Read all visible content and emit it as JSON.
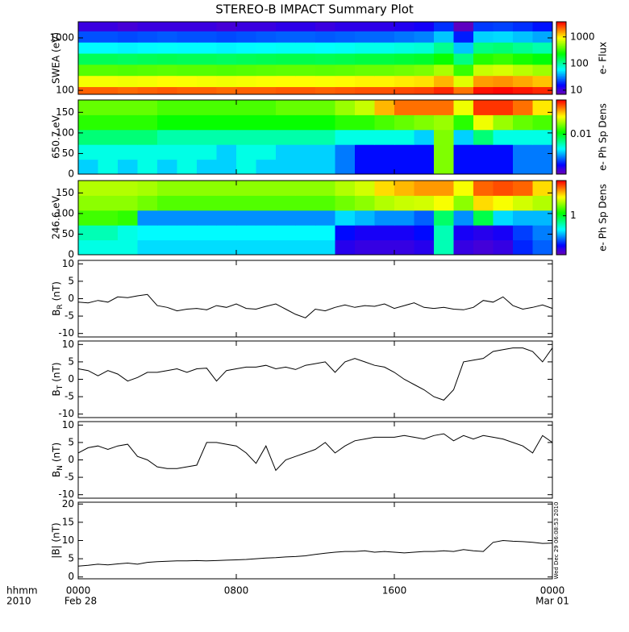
{
  "title": "STEREO-B IMPACT Summary Plot",
  "x_axis": {
    "xlim": [
      0,
      24
    ],
    "xticks": [
      {
        "value": 0,
        "label": "0000"
      },
      {
        "value": 8,
        "label": "0800"
      },
      {
        "value": 16,
        "label": "1600"
      },
      {
        "value": 24,
        "label": "0000"
      }
    ],
    "date_labels": [
      "Feb 28",
      "Mar 01"
    ],
    "unit_labels": [
      "hhmm",
      "2010"
    ]
  },
  "stamp": "Wed Dec 29 06:08:53 2010",
  "chart_data": [
    {
      "type": "heatmap",
      "ylabel": "SWEA (eV)",
      "ylog": true,
      "ylim": [
        84,
        2030
      ],
      "yticks": [
        100,
        1000
      ],
      "colorbar_label": "e- Flux",
      "clog": true,
      "clim": [
        7,
        3700
      ],
      "cticks": [
        10,
        100,
        1000
      ],
      "x": [
        0.5,
        1.5,
        2.5,
        3.5,
        4.5,
        5.5,
        6.5,
        7.5,
        8.5,
        9.5,
        10.5,
        11.5,
        12.5,
        13.5,
        14.5,
        15.5,
        16.5,
        17.5,
        18.5,
        19.5,
        20.5,
        21.5,
        22.5,
        23.5
      ],
      "y": [
        92,
        150,
        245,
        400,
        650,
        1060,
        1730
      ],
      "values": [
        [
          2200,
          2200,
          2100,
          2200,
          2300,
          2200,
          2200,
          2100,
          2200,
          2200,
          2300,
          2300,
          2200,
          2300,
          2400,
          2400,
          2500,
          2600,
          3000,
          2000,
          3400,
          3600,
          3300,
          3000
        ],
        [
          900,
          900,
          880,
          900,
          950,
          920,
          900,
          880,
          900,
          920,
          950,
          950,
          920,
          960,
          1000,
          1000,
          1050,
          1100,
          1400,
          800,
          1600,
          1700,
          1500,
          1300
        ],
        [
          380,
          380,
          370,
          380,
          390,
          380,
          380,
          370,
          380,
          390,
          400,
          400,
          390,
          400,
          420,
          420,
          440,
          470,
          600,
          320,
          700,
          760,
          650,
          560
        ],
        [
          150,
          150,
          145,
          150,
          155,
          150,
          150,
          145,
          150,
          155,
          160,
          160,
          155,
          160,
          170,
          170,
          180,
          190,
          250,
          120,
          290,
          320,
          270,
          230
        ],
        [
          60,
          60,
          58,
          60,
          62,
          60,
          60,
          58,
          60,
          62,
          64,
          64,
          62,
          64,
          68,
          68,
          72,
          76,
          110,
          45,
          120,
          130,
          110,
          95
        ],
        [
          24,
          24,
          23,
          24,
          25,
          24,
          24,
          23,
          24,
          25,
          26,
          26,
          25,
          26,
          27,
          27,
          29,
          31,
          45,
          18,
          48,
          50,
          44,
          38
        ],
        [
          11,
          11,
          10,
          11,
          11,
          11,
          11,
          10,
          11,
          11,
          12,
          12,
          11,
          12,
          12,
          12,
          13,
          14,
          20,
          8,
          21,
          22,
          20,
          17
        ]
      ]
    },
    {
      "type": "heatmap",
      "ylabel": "650.7 eV",
      "ylim": [
        0,
        180
      ],
      "yticks": [
        0,
        50,
        100,
        150
      ],
      "colorbar_label": "e- Ph Sp Dens",
      "clog": true,
      "clim": [
        0.002,
        0.04
      ],
      "cticks": [
        0.01
      ],
      "x": [
        0.5,
        1.5,
        2.5,
        3.5,
        4.5,
        5.5,
        6.5,
        7.5,
        8.5,
        9.5,
        10.5,
        11.5,
        12.5,
        13.5,
        14.5,
        15.5,
        16.5,
        17.5,
        18.5,
        19.5,
        20.5,
        21.5,
        22.5,
        23.5
      ],
      "y": [
        18,
        54,
        90,
        126,
        162
      ],
      "values": [
        [
          0.005,
          0.006,
          0.005,
          0.006,
          0.005,
          0.006,
          0.005,
          0.005,
          0.006,
          0.005,
          0.005,
          0.005,
          0.005,
          0.004,
          0.003,
          0.003,
          0.003,
          0.003,
          0.015,
          0.003,
          0.003,
          0.003,
          0.004,
          0.004
        ],
        [
          0.006,
          0.006,
          0.006,
          0.006,
          0.006,
          0.006,
          0.006,
          0.005,
          0.006,
          0.006,
          0.005,
          0.005,
          0.005,
          0.004,
          0.003,
          0.003,
          0.003,
          0.003,
          0.015,
          0.003,
          0.003,
          0.003,
          0.004,
          0.004
        ],
        [
          0.008,
          0.008,
          0.008,
          0.008,
          0.007,
          0.007,
          0.007,
          0.007,
          0.007,
          0.007,
          0.007,
          0.007,
          0.007,
          0.006,
          0.006,
          0.006,
          0.006,
          0.005,
          0.015,
          0.005,
          0.008,
          0.006,
          0.006,
          0.006
        ],
        [
          0.012,
          0.012,
          0.012,
          0.012,
          0.011,
          0.011,
          0.011,
          0.011,
          0.011,
          0.011,
          0.011,
          0.011,
          0.011,
          0.012,
          0.012,
          0.013,
          0.014,
          0.015,
          0.016,
          0.012,
          0.02,
          0.016,
          0.014,
          0.013
        ],
        [
          0.014,
          0.014,
          0.014,
          0.014,
          0.013,
          0.013,
          0.013,
          0.013,
          0.013,
          0.013,
          0.014,
          0.014,
          0.014,
          0.016,
          0.018,
          0.025,
          0.03,
          0.03,
          0.03,
          0.02,
          0.035,
          0.035,
          0.03,
          0.022
        ]
      ]
    },
    {
      "type": "heatmap",
      "ylabel": "246.6 eV",
      "ylim": [
        0,
        180
      ],
      "yticks": [
        0,
        50,
        100,
        150
      ],
      "colorbar_label": "e- Ph Sp Dens",
      "clog": true,
      "clim": [
        0.1,
        8
      ],
      "cticks": [
        1
      ],
      "x": [
        0.5,
        1.5,
        2.5,
        3.5,
        4.5,
        5.5,
        6.5,
        7.5,
        8.5,
        9.5,
        10.5,
        11.5,
        12.5,
        13.5,
        14.5,
        15.5,
        16.5,
        17.5,
        18.5,
        19.5,
        20.5,
        21.5,
        22.5,
        23.5
      ],
      "y": [
        18,
        54,
        90,
        126,
        162
      ],
      "values": [
        [
          0.5,
          0.5,
          0.5,
          0.4,
          0.4,
          0.4,
          0.4,
          0.4,
          0.4,
          0.4,
          0.4,
          0.4,
          0.4,
          0.15,
          0.14,
          0.14,
          0.14,
          0.15,
          0.6,
          0.14,
          0.13,
          0.14,
          0.2,
          0.25
        ],
        [
          0.6,
          0.6,
          0.5,
          0.45,
          0.45,
          0.45,
          0.45,
          0.45,
          0.45,
          0.45,
          0.45,
          0.45,
          0.45,
          0.18,
          0.16,
          0.16,
          0.16,
          0.18,
          0.6,
          0.16,
          0.15,
          0.16,
          0.22,
          0.28
        ],
        [
          1.5,
          1.5,
          1.4,
          0.3,
          0.3,
          0.3,
          0.3,
          0.3,
          0.3,
          0.3,
          0.3,
          0.3,
          0.3,
          0.4,
          0.35,
          0.3,
          0.3,
          0.25,
          0.8,
          0.3,
          0.9,
          0.4,
          0.35,
          0.35
        ],
        [
          2,
          2,
          2,
          1.8,
          1.6,
          1.6,
          1.6,
          1.6,
          1.6,
          1.6,
          1.6,
          1.6,
          1.6,
          1.8,
          2,
          2.3,
          2.5,
          2.6,
          3,
          2,
          3.5,
          3,
          2.6,
          2.3
        ],
        [
          2.3,
          2.3,
          2.3,
          2.2,
          2,
          2,
          2,
          2,
          2,
          2,
          2,
          2,
          2,
          2.3,
          2.6,
          3.5,
          4,
          4.5,
          4.5,
          3,
          5.5,
          6,
          5.5,
          3.5
        ]
      ]
    },
    {
      "type": "line",
      "ylabel": "B",
      "ylabel_sub": "R",
      "ylabel_unit": "(nT)",
      "color": "#000000",
      "ylim": [
        -11,
        11
      ],
      "yticks": [
        -10,
        -5,
        0,
        5,
        10
      ],
      "x": [
        0,
        0.5,
        1,
        1.5,
        2,
        2.5,
        3,
        3.5,
        4,
        4.5,
        5,
        5.5,
        6,
        6.5,
        7,
        7.5,
        8,
        8.5,
        9,
        9.5,
        10,
        10.5,
        11,
        11.5,
        12,
        12.5,
        13,
        13.5,
        14,
        14.5,
        15,
        15.5,
        16,
        16.5,
        17,
        17.5,
        18,
        18.5,
        19,
        19.5,
        20,
        20.5,
        21,
        21.5,
        22,
        22.5,
        23,
        23.5,
        24
      ],
      "values": [
        -1,
        -1.2,
        -0.5,
        -1,
        0.5,
        0.3,
        0.8,
        1.2,
        -2,
        -2.5,
        -3.5,
        -3,
        -2.8,
        -3.2,
        -2,
        -2.5,
        -1.5,
        -2.8,
        -3,
        -2.2,
        -1.5,
        -3,
        -4.5,
        -5.5,
        -3,
        -3.5,
        -2.5,
        -1.8,
        -2.5,
        -2,
        -2.2,
        -1.5,
        -2.8,
        -2,
        -1.2,
        -2.5,
        -2.8,
        -2.5,
        -3,
        -3.2,
        -2.5,
        -0.5,
        -1,
        0.5,
        -2,
        -3,
        -2.5,
        -1.8,
        -2.8
      ]
    },
    {
      "type": "line",
      "ylabel": "B",
      "ylabel_sub": "T",
      "ylabel_unit": "(nT)",
      "color": "#000000",
      "ylim": [
        -11,
        11
      ],
      "yticks": [
        -10,
        -5,
        0,
        5,
        10
      ],
      "x": [
        0,
        0.5,
        1,
        1.5,
        2,
        2.5,
        3,
        3.5,
        4,
        4.5,
        5,
        5.5,
        6,
        6.5,
        7,
        7.5,
        8,
        8.5,
        9,
        9.5,
        10,
        10.5,
        11,
        11.5,
        12,
        12.5,
        13,
        13.5,
        14,
        14.5,
        15,
        15.5,
        16,
        16.5,
        17,
        17.5,
        18,
        18.5,
        19,
        19.5,
        20,
        20.5,
        21,
        21.5,
        22,
        22.5,
        23,
        23.5,
        24
      ],
      "values": [
        3,
        2.5,
        1,
        2.5,
        1.5,
        -0.5,
        0.5,
        2,
        2,
        2.5,
        3,
        2,
        3,
        3.2,
        -0.5,
        2.5,
        3,
        3.5,
        3.5,
        4,
        3,
        3.5,
        2.8,
        4,
        4.5,
        5,
        2,
        5,
        6,
        5,
        4,
        3.5,
        2,
        0,
        -1.5,
        -3,
        -5,
        -6,
        -3,
        5,
        5.5,
        6,
        8,
        8.5,
        9,
        9,
        8,
        5,
        9
      ]
    },
    {
      "type": "line",
      "ylabel": "B",
      "ylabel_sub": "N",
      "ylabel_unit": "(nT)",
      "color": "#000000",
      "ylim": [
        -11,
        11
      ],
      "yticks": [
        -10,
        -5,
        0,
        5,
        10
      ],
      "x": [
        0,
        0.5,
        1,
        1.5,
        2,
        2.5,
        3,
        3.5,
        4,
        4.5,
        5,
        5.5,
        6,
        6.5,
        7,
        7.5,
        8,
        8.5,
        9,
        9.5,
        10,
        10.5,
        11,
        11.5,
        12,
        12.5,
        13,
        13.5,
        14,
        14.5,
        15,
        15.5,
        16,
        16.5,
        17,
        17.5,
        18,
        18.5,
        19,
        19.5,
        20,
        20.5,
        21,
        21.5,
        22,
        22.5,
        23,
        23.5,
        24
      ],
      "values": [
        2,
        3.5,
        4,
        3,
        4,
        4.5,
        1,
        0,
        -2,
        -2.5,
        -2.5,
        -2,
        -1.5,
        5,
        5,
        4.5,
        4,
        2,
        -1,
        4,
        -3,
        0,
        1,
        2,
        3,
        5,
        2,
        4,
        5.5,
        6,
        6.5,
        6.5,
        6.5,
        7,
        6.5,
        6,
        7,
        7.5,
        5.5,
        7,
        6,
        7,
        6.5,
        6,
        5,
        4,
        2,
        7,
        5
      ]
    },
    {
      "type": "line",
      "ylabel": "|B| (nT)",
      "color": "#000000",
      "ylim": [
        -0.5,
        20.5
      ],
      "yticks": [
        0,
        5,
        10,
        15,
        20
      ],
      "x": [
        0,
        0.5,
        1,
        1.5,
        2,
        2.5,
        3,
        3.5,
        4,
        4.5,
        5,
        5.5,
        6,
        6.5,
        7,
        7.5,
        8,
        8.5,
        9,
        9.5,
        10,
        10.5,
        11,
        11.5,
        12,
        12.5,
        13,
        13.5,
        14,
        14.5,
        15,
        15.5,
        16,
        16.5,
        17,
        17.5,
        18,
        18.5,
        19,
        19.5,
        20,
        20.5,
        21,
        21.5,
        22,
        22.5,
        23,
        23.5,
        24
      ],
      "values": [
        3,
        3.2,
        3.5,
        3.3,
        3.6,
        3.8,
        3.5,
        4,
        4.2,
        4.3,
        4.4,
        4.4,
        4.5,
        4.4,
        4.5,
        4.6,
        4.7,
        4.8,
        5,
        5.2,
        5.3,
        5.5,
        5.6,
        5.8,
        6.2,
        6.5,
        6.8,
        7,
        7,
        7.2,
        6.8,
        7,
        6.8,
        6.6,
        6.8,
        7,
        7,
        7.2,
        7,
        7.5,
        7.2,
        7,
        9.5,
        10,
        9.8,
        9.7,
        9.5,
        9.2,
        9.3
      ]
    }
  ]
}
